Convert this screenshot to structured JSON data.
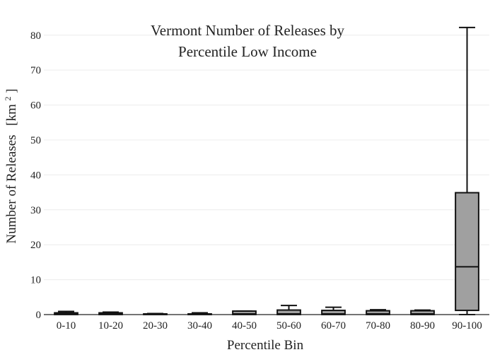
{
  "chart_data": {
    "type": "box",
    "title_lines": [
      "Vermont Number of Releases by",
      "Percentile Low Income"
    ],
    "xlabel": "Percentile Bin",
    "ylabel": "Number of Releases",
    "ylabel_unit": "[km",
    "ylabel_unit_sup": "2",
    "ylabel_unit_close": "]",
    "ylim": [
      0,
      84
    ],
    "yticks": [
      0,
      10,
      20,
      30,
      40,
      50,
      60,
      70,
      80
    ],
    "ytick_labels": [
      "0",
      "10",
      "20",
      "30",
      "40",
      "50",
      "60",
      "70",
      "80"
    ],
    "grid": true,
    "box_color": "#a0a0a0",
    "categories": [
      "0-10",
      "10-20",
      "20-30",
      "30-40",
      "40-50",
      "50-60",
      "60-70",
      "70-80",
      "80-90",
      "90-100"
    ],
    "boxes": [
      {
        "min": 0,
        "q1": 0,
        "median": 0.1,
        "q3": 0.5,
        "max": 0.9
      },
      {
        "min": 0,
        "q1": 0,
        "median": 0.1,
        "q3": 0.5,
        "max": 0.7
      },
      {
        "min": 0,
        "q1": 0,
        "median": 0,
        "q3": 0.2,
        "max": 0.3
      },
      {
        "min": 0,
        "q1": 0,
        "median": 0,
        "q3": 0.2,
        "max": 0.5
      },
      {
        "min": 0,
        "q1": 0,
        "median": 0.2,
        "q3": 1.0,
        "max": 1.0
      },
      {
        "min": 0,
        "q1": 0,
        "median": 0.2,
        "q3": 1.3,
        "max": 2.6
      },
      {
        "min": 0,
        "q1": 0,
        "median": 0.2,
        "q3": 1.2,
        "max": 2.1
      },
      {
        "min": 0,
        "q1": 0,
        "median": 0.2,
        "q3": 1.1,
        "max": 1.4
      },
      {
        "min": 0,
        "q1": 0,
        "median": 0.2,
        "q3": 1.1,
        "max": 1.3
      },
      {
        "min": 0,
        "q1": 1.2,
        "median": 13.7,
        "q3": 34.9,
        "max": 82.2
      }
    ]
  }
}
